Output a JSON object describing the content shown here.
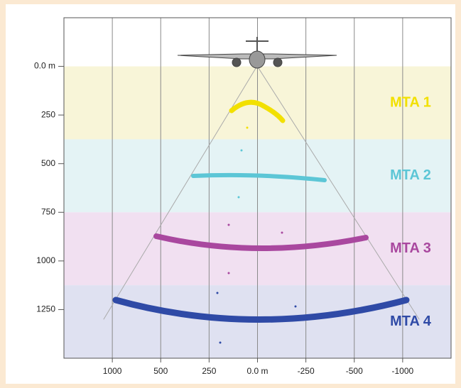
{
  "chart_data": {
    "type": "zones",
    "xticks": [
      "1000",
      "500",
      "250",
      "0.0 m",
      "-250",
      "-500",
      "-1000"
    ],
    "ylim": [
      -250,
      1500
    ],
    "yticks": [
      {
        "value": 0,
        "label": "0.0 m"
      },
      250,
      500,
      750,
      1000,
      1250
    ],
    "grid": true,
    "zones": [
      {
        "name": "MTA 1",
        "color": "#f2e000",
        "band": "#f8f5d8",
        "range": [
          0,
          375
        ]
      },
      {
        "name": "MTA 2",
        "color": "#5cc6d6",
        "band": "#e4f3f5",
        "range": [
          375,
          750
        ]
      },
      {
        "name": "MTA 3",
        "color": "#a9489f",
        "band": "#f1e0f1",
        "range": [
          750,
          1125
        ]
      },
      {
        "name": "MTA 4",
        "color": "#2f4aa6",
        "band": "#dfe1f1",
        "range": [
          1125,
          1500
        ]
      }
    ]
  }
}
